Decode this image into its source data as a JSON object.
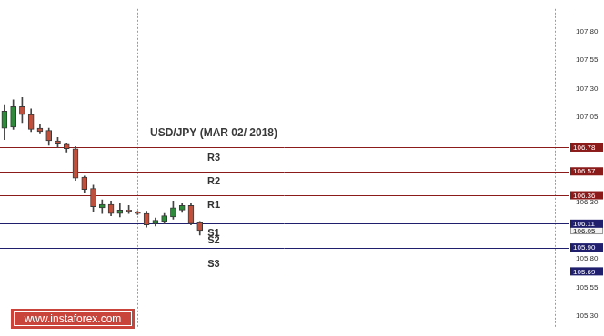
{
  "chart_data": {
    "type": "candlestick",
    "title": "USD/JPY (MAR 02/ 2018)",
    "categories": [
      null,
      null,
      null,
      null,
      null,
      null,
      null,
      null,
      null,
      null,
      null,
      null,
      null,
      null,
      null,
      null,
      null,
      null,
      null,
      null,
      null,
      null,
      null,
      null,
      null,
      null,
      null,
      null,
      null,
      null,
      null,
      null,
      null,
      null,
      null,
      null,
      null,
      null,
      null,
      null,
      null,
      null,
      null,
      null,
      null,
      null,
      null,
      null,
      null,
      null,
      null,
      null,
      null,
      null,
      null,
      null,
      null,
      null,
      null,
      null,
      null,
      null,
      null,
      null
    ],
    "open": [
      106.95,
      106.96,
      107.14,
      107.07,
      106.95,
      106.93,
      106.84,
      106.81,
      106.77,
      106.52,
      106.42,
      106.25,
      106.28,
      106.2,
      106.23,
      106.21,
      106.2,
      106.11,
      106.13,
      106.17,
      106.23,
      106.27,
      106.12,
      null,
      null,
      null,
      null,
      null,
      null,
      null,
      null,
      null,
      null,
      null,
      null,
      null,
      null,
      null,
      null,
      null,
      null,
      null,
      null,
      null,
      null,
      null,
      null,
      null,
      null,
      null,
      null,
      null,
      null,
      null,
      null,
      null,
      null,
      null,
      null,
      null,
      null,
      null,
      null,
      null
    ],
    "high": [
      107.15,
      107.2,
      107.22,
      107.12,
      106.98,
      106.95,
      106.87,
      106.82,
      106.79,
      106.53,
      106.45,
      106.32,
      106.31,
      106.29,
      106.27,
      106.22,
      106.22,
      106.16,
      106.2,
      106.31,
      106.29,
      106.29,
      106.13,
      null,
      null,
      null,
      null,
      null,
      null,
      null,
      null,
      null,
      null,
      null,
      null,
      null,
      null,
      null,
      null,
      null,
      null,
      null,
      null,
      null,
      null,
      null,
      null,
      null,
      null,
      null,
      null,
      null,
      null,
      null,
      null,
      null,
      null,
      null,
      null,
      null,
      null,
      null,
      null,
      null
    ],
    "low": [
      106.85,
      106.94,
      107.0,
      106.92,
      106.9,
      106.8,
      106.78,
      106.74,
      106.49,
      106.38,
      106.22,
      106.2,
      106.18,
      106.17,
      106.2,
      106.19,
      106.08,
      106.09,
      106.11,
      106.15,
      106.21,
      106.1,
      106.01,
      null,
      null,
      null,
      null,
      null,
      null,
      null,
      null,
      null,
      null,
      null,
      null,
      null,
      null,
      null,
      null,
      null,
      null,
      null,
      null,
      null,
      null,
      null,
      null,
      null,
      null,
      null,
      null,
      null,
      null,
      null,
      null,
      null,
      null,
      null,
      null,
      null,
      null,
      null,
      null,
      null
    ],
    "close": [
      107.1,
      107.14,
      107.07,
      106.94,
      106.92,
      106.84,
      106.81,
      106.77,
      106.51,
      106.41,
      106.26,
      106.28,
      106.2,
      106.23,
      106.22,
      106.2,
      106.1,
      106.14,
      106.18,
      106.25,
      106.27,
      106.11,
      106.05,
      null,
      null,
      null,
      null,
      null,
      null,
      null,
      null,
      null,
      null,
      null,
      null,
      null,
      null,
      null,
      null,
      null,
      null,
      null,
      null,
      null,
      null,
      null,
      null,
      null,
      null,
      null,
      null,
      null,
      null,
      null,
      null,
      null,
      null,
      null,
      null,
      null,
      null,
      null,
      null,
      null
    ],
    "colors": [
      "#2e8b3a",
      "#2e8b3a",
      "#c0503c",
      "#c0503c",
      "#c0503c",
      "#c0503c",
      "#c0503c",
      "#c0503c",
      "#c0503c",
      "#c0503c",
      "#c0503c",
      "#2e8b3a",
      "#c0503c",
      "#2e8b3a",
      "#c0503c",
      "#c0503c",
      "#c0503c",
      "#2e8b3a",
      "#2e8b3a",
      "#2e8b3a",
      "#2e8b3a",
      "#c0503c",
      "#c0503c",
      null,
      null,
      null,
      null,
      null,
      null,
      null,
      null,
      null,
      null,
      null,
      null,
      null,
      null,
      null,
      null,
      null,
      null,
      null,
      null,
      null,
      null,
      null,
      null,
      null,
      null,
      null,
      null,
      null,
      null,
      null,
      null,
      null,
      null,
      null,
      null,
      null,
      null,
      null,
      null,
      null
    ],
    "levels": [
      {
        "name": "R3",
        "value": 106.78,
        "label": "106.78",
        "color": "#8b1a1a"
      },
      {
        "name": "R2",
        "value": 106.57,
        "label": "106.57",
        "color": "#8b1a1a"
      },
      {
        "name": "R1",
        "value": 106.36,
        "label": "106.36",
        "color": "#8b1a1a"
      },
      {
        "name": "S1",
        "value": 106.11,
        "label": "106.11",
        "color": "#1f1f6e"
      },
      {
        "name": "S2",
        "value": 105.9,
        "label": "105.90",
        "color": "#1f1f6e"
      },
      {
        "name": "S3",
        "value": 105.69,
        "label": "105.69",
        "color": "#1f1f6e"
      }
    ],
    "last_price": {
      "value": 106.05,
      "label": "106.05"
    },
    "vlines": [
      15,
      62
    ],
    "ylim": [
      105.2,
      108.0
    ],
    "yticks": [
      {
        "value": 105.3,
        "label": "105.30"
      },
      {
        "value": 105.55,
        "label": "105.55"
      },
      {
        "value": 105.8,
        "label": "105.80"
      },
      {
        "value": 106.3,
        "label": "106.30"
      },
      {
        "value": 107.05,
        "label": "107.05"
      },
      {
        "value": 107.3,
        "label": "107.30"
      },
      {
        "value": 107.55,
        "label": "107.55"
      },
      {
        "value": 107.8,
        "label": "107.80"
      }
    ],
    "tick_labels": "y",
    "grid": false,
    "watermark": "www.instaforex.com"
  }
}
